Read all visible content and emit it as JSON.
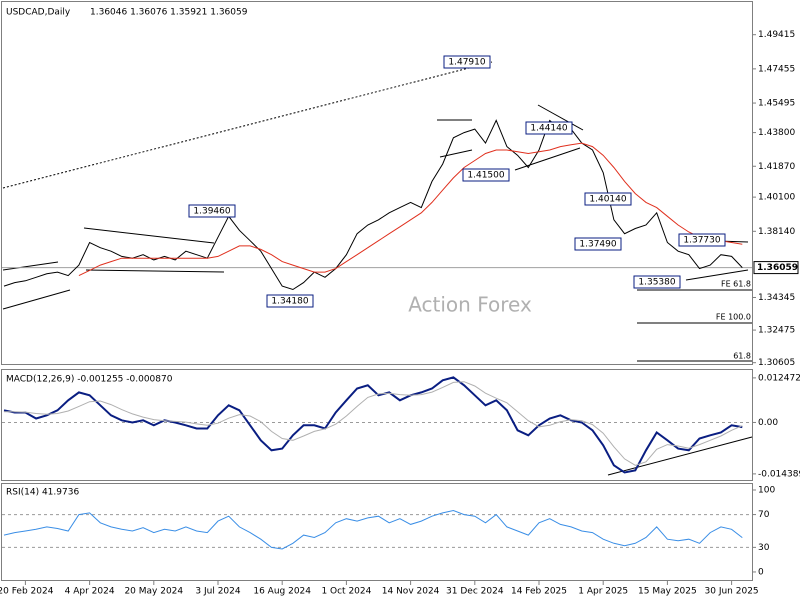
{
  "chart_data": [
    {
      "type": "line",
      "title": "USDCAD,Daily",
      "subtitle": "1.36046 1.36076 1.35921 1.36059",
      "watermark": "Action Forex",
      "ylim": [
        1.3053,
        1.5129
      ],
      "yticks": [
        1.49415,
        1.47455,
        1.45495,
        {
          "value": 1.438,
          "label": "1.43800"
        },
        {
          "value": 1.4187,
          "label": "1.41870"
        },
        {
          "value": 1.401,
          "label": "1.40100"
        },
        {
          "value": 1.3814,
          "label": "1.38140"
        },
        1.34345,
        1.32475,
        1.30605
      ],
      "last_price": {
        "value": 1.36059,
        "label": "1.36059"
      },
      "series": [
        {
          "color": "#000000",
          "values": [
            1.35,
            1.352,
            1.353,
            1.355,
            1.357,
            1.358,
            1.356,
            1.362,
            1.375,
            1.372,
            1.37,
            1.367,
            1.366,
            1.368,
            1.365,
            1.367,
            1.365,
            1.37,
            1.368,
            1.366,
            1.378,
            1.39,
            1.382,
            1.376,
            1.37,
            1.36,
            1.35,
            1.348,
            1.352,
            1.358,
            1.355,
            1.36,
            1.368,
            1.38,
            1.385,
            1.388,
            1.392,
            1.395,
            1.398,
            1.395,
            1.41,
            1.42,
            1.435,
            1.438,
            1.44,
            1.432,
            1.445,
            1.43,
            1.425,
            1.418,
            1.428,
            1.445,
            1.44,
            1.44,
            1.432,
            1.428,
            1.415,
            1.388,
            1.38,
            1.383,
            1.385,
            1.392,
            1.375,
            1.37,
            1.368,
            1.36,
            1.362,
            1.368,
            1.367,
            1.36059
          ]
        },
        {
          "color": "#e0301e",
          "values": [
            null,
            null,
            null,
            null,
            null,
            null,
            null,
            1.356,
            1.359,
            1.362,
            1.364,
            1.366,
            1.366,
            1.366,
            1.366,
            1.366,
            1.366,
            1.366,
            1.366,
            1.366,
            1.367,
            1.37,
            1.373,
            1.373,
            1.371,
            1.368,
            1.364,
            1.362,
            1.36,
            1.358,
            1.358,
            1.36,
            1.364,
            1.368,
            1.372,
            1.376,
            1.38,
            1.384,
            1.388,
            1.392,
            1.398,
            1.405,
            1.412,
            1.418,
            1.422,
            1.426,
            1.428,
            1.428,
            1.427,
            1.426,
            1.427,
            1.428,
            1.43,
            1.431,
            1.432,
            1.43,
            1.425,
            1.418,
            1.41,
            1.403,
            1.398,
            1.395,
            1.39,
            1.385,
            1.381,
            1.378,
            1.377,
            1.376,
            1.375,
            1.374
          ]
        }
      ],
      "annotations": [
        "1.47910",
        "1.39460",
        "1.34180",
        "1.41500",
        "1.44140",
        "1.40140",
        "1.37490",
        "1.37730",
        "1.35380"
      ],
      "fe_labels": [
        "FE 61.8",
        "FE 100.0",
        "61.8"
      ]
    },
    {
      "type": "line",
      "title": "MACD(12,26,9) -0.001255 -0.000870",
      "ylim": [
        -0.0161,
        0.0144
      ],
      "yticks": [
        0.012472,
        {
          "value": 0,
          "label": "0.00"
        },
        -0.014389
      ],
      "levels": [
        0
      ],
      "series": [
        {
          "color": "#0a1e82",
          "values": [
            0.0034,
            0.0028,
            0.0028,
            0.0011,
            0.002,
            0.0034,
            0.0062,
            0.0084,
            0.0076,
            0.0048,
            0.002,
            0.0006,
            0,
            0.0006,
            -0.0008,
            0.0006,
            0,
            -0.0008,
            -0.0017,
            -0.0017,
            0.002,
            0.0048,
            0.0034,
            -0.0008,
            -0.005,
            -0.0078,
            -0.0073,
            -0.0036,
            -0.0008,
            -0.0008,
            -0.0017,
            0.0028,
            0.0062,
            0.0095,
            0.0104,
            0.0076,
            0.0084,
            0.0062,
            0.0076,
            0.0084,
            0.0095,
            0.0118,
            0.0126,
            0.0104,
            0.0076,
            0.0048,
            0.0062,
            0.0034,
            -0.0022,
            -0.0036,
            -0.0008,
            0.0011,
            0.002,
            0.0006,
            0,
            -0.0022,
            -0.0064,
            -0.012,
            -0.014,
            -0.0134,
            -0.0078,
            -0.0028,
            -0.005,
            -0.0073,
            -0.0078,
            -0.0045,
            -0.0036,
            -0.0028,
            -0.0008,
            -0.0013
          ]
        },
        {
          "color": "#b0b0b0",
          "values": [
            0.003,
            0.003,
            0.0029,
            0.0025,
            0.0023,
            0.0025,
            0.0032,
            0.0045,
            0.0058,
            0.006,
            0.005,
            0.0036,
            0.0024,
            0.0015,
            0.0008,
            0.0005,
            0.0003,
            0.0001,
            -0.0004,
            -0.0008,
            -0.0002,
            0.0012,
            0.0022,
            0.0018,
            0.0002,
            -0.0025,
            -0.0045,
            -0.005,
            -0.0038,
            -0.0025,
            -0.0018,
            -0.0005,
            0.0018,
            0.0045,
            0.007,
            0.008,
            0.0082,
            0.0078,
            0.0076,
            0.0078,
            0.0085,
            0.0098,
            0.0112,
            0.0114,
            0.0102,
            0.0082,
            0.0068,
            0.0055,
            0.003,
            0.0005,
            -0.0012,
            -0.0008,
            0.0002,
            0.0008,
            0.0005,
            -0.0006,
            -0.003,
            -0.0068,
            -0.0102,
            -0.012,
            -0.011,
            -0.0075,
            -0.0062,
            -0.0066,
            -0.0072,
            -0.0062,
            -0.005,
            -0.0038,
            -0.0022,
            -0.0009
          ]
        }
      ]
    },
    {
      "type": "line",
      "title": "RSI(14) 41.9736",
      "ylim": [
        -9.8,
        107.3
      ],
      "yticks": [
        100,
        70,
        30,
        0
      ],
      "levels": [
        70,
        30
      ],
      "categories": [
        null,
        null,
        "20 Feb 2024",
        null,
        null,
        null,
        null,
        null,
        "4 Apr 2024",
        null,
        null,
        null,
        null,
        null,
        "20 May 2024",
        null,
        null,
        null,
        null,
        null,
        "3 Jul 2024",
        null,
        null,
        null,
        null,
        null,
        "16 Aug 2024",
        null,
        null,
        null,
        null,
        null,
        "1 Oct 2024",
        null,
        null,
        null,
        null,
        null,
        "14 Nov 2024",
        null,
        null,
        null,
        null,
        null,
        "31 Dec 2024",
        null,
        null,
        null,
        null,
        null,
        "14 Feb 2025",
        null,
        null,
        null,
        null,
        null,
        "1 Apr 2025",
        null,
        null,
        null,
        null,
        null,
        "15 May 2025",
        null,
        null,
        null,
        null,
        null,
        "30 Jun 2025",
        null
      ],
      "series": [
        {
          "color": "#3a8ee6",
          "values": [
            45,
            48,
            50,
            52,
            55,
            53,
            50,
            70,
            72,
            60,
            55,
            52,
            50,
            54,
            48,
            52,
            50,
            55,
            50,
            48,
            62,
            68,
            55,
            48,
            40,
            30,
            28,
            35,
            45,
            42,
            48,
            60,
            65,
            62,
            66,
            68,
            60,
            65,
            58,
            62,
            68,
            72,
            75,
            70,
            68,
            60,
            70,
            55,
            50,
            45,
            60,
            65,
            58,
            55,
            50,
            48,
            40,
            35,
            32,
            35,
            42,
            55,
            40,
            38,
            40,
            35,
            48,
            55,
            52,
            41.9736
          ]
        }
      ]
    }
  ]
}
